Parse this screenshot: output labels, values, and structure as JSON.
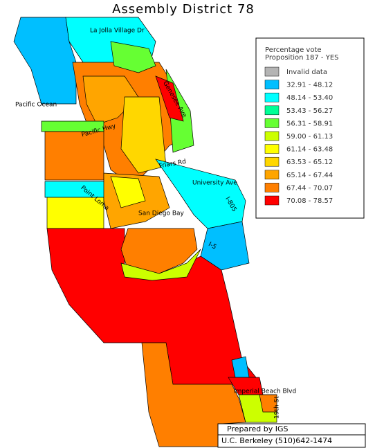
{
  "title": "Assembly District 78",
  "legend": {
    "title_lines": [
      "Percentage vote",
      "Proposition 187 - YES"
    ],
    "entries": [
      {
        "label": "Invalid data",
        "color": "#b4b4b4"
      },
      {
        "label": "32.91 - 48.12",
        "color": "#00bfff"
      },
      {
        "label": "48.14 - 53.40",
        "color": "#00ffff"
      },
      {
        "label": "53.43 - 56.27",
        "color": "#00ff96"
      },
      {
        "label": "56.31 - 58.91",
        "color": "#66ff33"
      },
      {
        "label": "59.00 - 61.13",
        "color": "#ccff00"
      },
      {
        "label": "61.14 - 63.48",
        "color": "#ffff00"
      },
      {
        "label": "63.53 - 65.12",
        "color": "#ffd700"
      },
      {
        "label": "65.14 - 67.44",
        "color": "#ffa500"
      },
      {
        "label": "67.44 - 70.07",
        "color": "#ff7f00"
      },
      {
        "label": "70.08 - 78.57",
        "color": "#ff0000"
      }
    ]
  },
  "map_labels": [
    "La Jolla Village Dr",
    "Pacific Ocean",
    "Genesee Ave",
    "Pacific Hwy",
    "Friars Rd",
    "University Ave",
    "I-805",
    "Point Loma",
    "San Diego Bay",
    "I-5",
    "Imperial Beach Blvd",
    "19th St"
  ],
  "credits": [
    "Prepared by IGS",
    "U.C. Berkeley (510)642-1474"
  ]
}
